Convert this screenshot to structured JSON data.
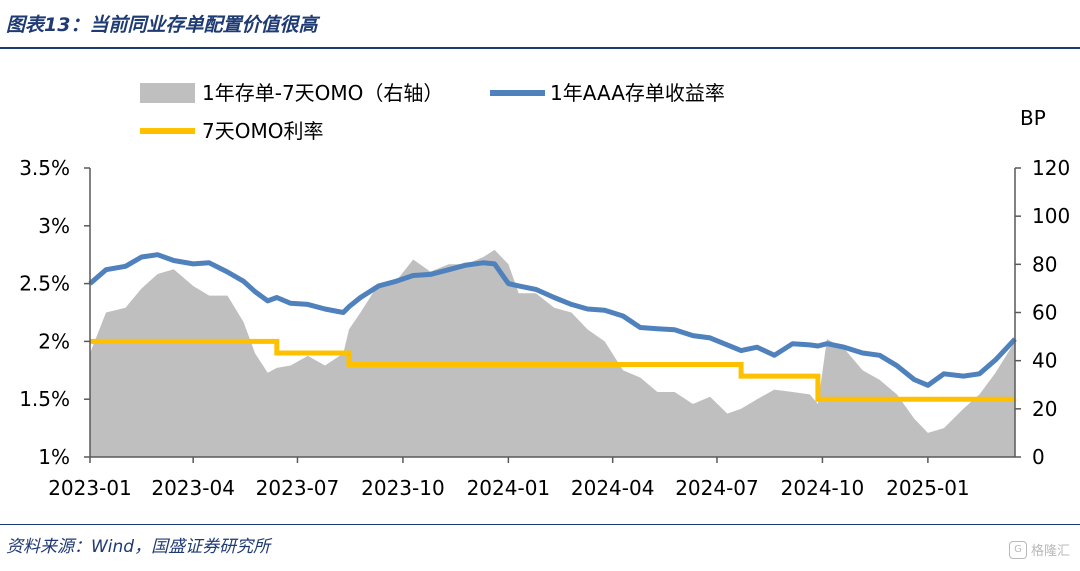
{
  "header": {
    "title": "图表13：当前同业存单配置价值很高"
  },
  "footer": {
    "source": "资料来源：Wind，国盛证券研究所",
    "watermark": "格隆汇"
  },
  "colors": {
    "area": "#bfbfbf",
    "yield_line": "#4f81bd",
    "omo_line": "#ffc000",
    "title": "#1f3b73"
  },
  "chart_data": {
    "type": "line",
    "title": "",
    "xlabel": "",
    "ylabel": "",
    "y2label": "BP",
    "legend_position": "top",
    "grid": false,
    "ylim": [
      1.0,
      3.5
    ],
    "y2lim": [
      0,
      120
    ],
    "yticks": [
      "1%",
      "1.5%",
      "2%",
      "2.5%",
      "3%",
      "3.5%"
    ],
    "yticks_values": [
      1.0,
      1.5,
      2.0,
      2.5,
      3.0,
      3.5
    ],
    "y2ticks": [
      "0",
      "20",
      "40",
      "60",
      "80",
      "100",
      "120"
    ],
    "y2ticks_values": [
      0,
      20,
      40,
      60,
      80,
      100,
      120
    ],
    "xticks": [
      "2023-01",
      "2023-04",
      "2023-07",
      "2023-10",
      "2024-01",
      "2024-04",
      "2024-07",
      "2024-10",
      "2025-01"
    ],
    "xticks_values": [
      "2023-01-01",
      "2023-04-01",
      "2023-07-01",
      "2023-10-01",
      "2024-01-01",
      "2024-04-01",
      "2024-07-01",
      "2024-10-01",
      "2025-01-01"
    ],
    "xlim": [
      "2023-01-01",
      "2025-03-18"
    ],
    "series": [
      {
        "name": "1年存单-7天OMO（右轴）",
        "type": "area",
        "axis": "right",
        "x": [
          "2023-01-01",
          "2023-01-15",
          "2023-02-01",
          "2023-02-15",
          "2023-03-01",
          "2023-03-15",
          "2023-04-01",
          "2023-04-15",
          "2023-05-01",
          "2023-05-15",
          "2023-05-25",
          "2023-06-05",
          "2023-06-13",
          "2023-06-25",
          "2023-07-10",
          "2023-07-25",
          "2023-08-10",
          "2023-08-15",
          "2023-08-25",
          "2023-09-10",
          "2023-09-25",
          "2023-10-10",
          "2023-10-25",
          "2023-11-10",
          "2023-11-25",
          "2023-12-10",
          "2023-12-20",
          "2024-01-01",
          "2024-01-10",
          "2024-01-25",
          "2024-02-10",
          "2024-02-25",
          "2024-03-10",
          "2024-03-25",
          "2024-04-10",
          "2024-04-25",
          "2024-05-10",
          "2024-05-25",
          "2024-06-10",
          "2024-06-25",
          "2024-07-10",
          "2024-07-22",
          "2024-08-05",
          "2024-08-20",
          "2024-09-05",
          "2024-09-20",
          "2024-09-27",
          "2024-10-05",
          "2024-10-20",
          "2024-11-05",
          "2024-11-20",
          "2024-12-05",
          "2024-12-20",
          "2025-01-01",
          "2025-01-15",
          "2025-02-01",
          "2025-02-15",
          "2025-03-01",
          "2025-03-18"
        ],
        "values": [
          43,
          60,
          62,
          70,
          76,
          78,
          71,
          67,
          67,
          56,
          43,
          35,
          37,
          38,
          42,
          38,
          43,
          53,
          60,
          72,
          73,
          82,
          77,
          80,
          80,
          83,
          86,
          80,
          68,
          68,
          62,
          60,
          53,
          48,
          36,
          33,
          27,
          27,
          22,
          25,
          18,
          20,
          24,
          28,
          27,
          26,
          22,
          49,
          45,
          36,
          32,
          26,
          16,
          10,
          12,
          20,
          26,
          35,
          48
        ]
      },
      {
        "name": "1年AAA存单收益率",
        "type": "line",
        "axis": "left",
        "x": [
          "2023-01-01",
          "2023-01-15",
          "2023-02-01",
          "2023-02-15",
          "2023-03-01",
          "2023-03-15",
          "2023-04-01",
          "2023-04-15",
          "2023-05-01",
          "2023-05-15",
          "2023-05-25",
          "2023-06-05",
          "2023-06-13",
          "2023-06-25",
          "2023-07-10",
          "2023-07-25",
          "2023-08-10",
          "2023-08-15",
          "2023-08-25",
          "2023-09-10",
          "2023-09-25",
          "2023-10-10",
          "2023-10-25",
          "2023-11-10",
          "2023-11-25",
          "2023-12-10",
          "2023-12-20",
          "2024-01-01",
          "2024-01-10",
          "2024-01-25",
          "2024-02-10",
          "2024-02-25",
          "2024-03-10",
          "2024-03-25",
          "2024-04-10",
          "2024-04-25",
          "2024-05-10",
          "2024-05-25",
          "2024-06-10",
          "2024-06-25",
          "2024-07-10",
          "2024-07-22",
          "2024-08-05",
          "2024-08-20",
          "2024-09-05",
          "2024-09-20",
          "2024-09-27",
          "2024-10-05",
          "2024-10-20",
          "2024-11-05",
          "2024-11-20",
          "2024-12-05",
          "2024-12-20",
          "2025-01-01",
          "2025-01-15",
          "2025-02-01",
          "2025-02-15",
          "2025-03-01",
          "2025-03-18"
        ],
        "values": [
          2.5,
          2.62,
          2.65,
          2.73,
          2.75,
          2.7,
          2.67,
          2.68,
          2.6,
          2.52,
          2.43,
          2.35,
          2.38,
          2.33,
          2.32,
          2.28,
          2.25,
          2.3,
          2.38,
          2.48,
          2.52,
          2.57,
          2.58,
          2.62,
          2.66,
          2.68,
          2.67,
          2.5,
          2.48,
          2.45,
          2.38,
          2.32,
          2.28,
          2.27,
          2.22,
          2.12,
          2.11,
          2.1,
          2.05,
          2.03,
          1.97,
          1.92,
          1.95,
          1.88,
          1.98,
          1.97,
          1.96,
          1.98,
          1.95,
          1.9,
          1.88,
          1.79,
          1.67,
          1.62,
          1.72,
          1.7,
          1.72,
          1.84,
          2.02
        ]
      },
      {
        "name": "7天OMO利率",
        "type": "line",
        "step": true,
        "axis": "left",
        "x": [
          "2023-01-01",
          "2023-06-13",
          "2023-08-15",
          "2024-07-22",
          "2024-09-27",
          "2025-03-18"
        ],
        "values": [
          2.0,
          1.9,
          1.8,
          1.7,
          1.5,
          1.5
        ]
      }
    ]
  }
}
